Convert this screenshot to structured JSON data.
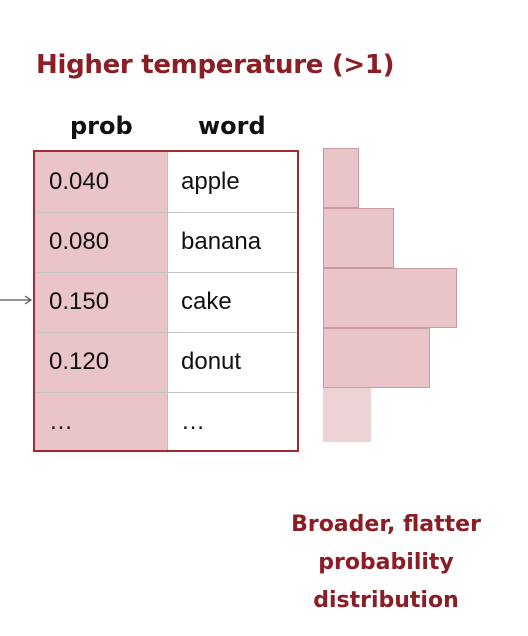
{
  "title": "Higher temperature (>1)",
  "table": {
    "headers": {
      "prob": "prob",
      "word": "word"
    },
    "rows": [
      {
        "prob": "0.040",
        "word": "apple"
      },
      {
        "prob": "0.080",
        "word": "banana"
      },
      {
        "prob": "0.150",
        "word": "cake"
      },
      {
        "prob": "0.120",
        "word": "donut"
      },
      {
        "prob": "…",
        "word": "…"
      }
    ]
  },
  "histogram": {
    "values": [
      0.04,
      0.08,
      0.15,
      0.12,
      null
    ],
    "max_value": 0.15
  },
  "caption": {
    "lines": [
      "Broader, flatter",
      "probability",
      "distribution"
    ]
  },
  "colors": {
    "accent": "#8b1d24",
    "table_border": "#a42a2f",
    "fill": "#e9c5c9"
  }
}
